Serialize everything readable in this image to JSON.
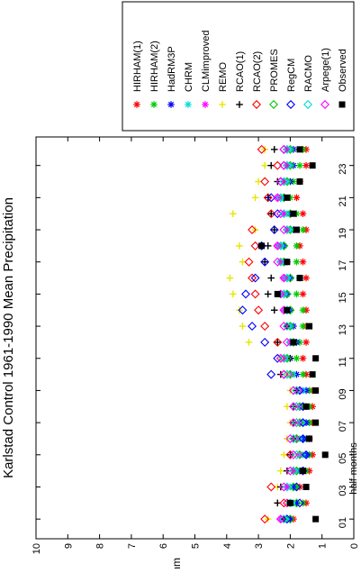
{
  "chart_data": {
    "type": "scatter",
    "title": "Karlstad Control 1961-1990 Mean Precipitation",
    "xlabel": "half-months",
    "ylabel": "mm",
    "ylim": [
      0,
      10
    ],
    "xlim": [
      0,
      24
    ],
    "x_ticks": [
      "01",
      "03",
      "05",
      "07",
      "09",
      "11",
      "13",
      "15",
      "17",
      "19",
      "21",
      "23"
    ],
    "y_ticks": [
      "0",
      "1",
      "2",
      "3",
      "4",
      "5",
      "6",
      "7",
      "8",
      "9",
      "10"
    ],
    "grid": false,
    "legend_position": "top-right",
    "x": [
      1,
      2,
      3,
      4,
      5,
      6,
      7,
      8,
      9,
      10,
      11,
      12,
      13,
      14,
      15,
      16,
      17,
      18,
      19,
      20,
      21,
      22,
      23,
      24
    ],
    "series": [
      {
        "name": "HIRHAM(1)",
        "color": "#ff0000",
        "marker": "star",
        "values": [
          1.9,
          1.5,
          1.7,
          1.4,
          1.3,
          1.4,
          1.3,
          1.3,
          1.3,
          1.5,
          1.6,
          1.5,
          1.5,
          1.5,
          1.6,
          1.5,
          1.6,
          1.7,
          1.5,
          1.6,
          1.8,
          1.7,
          1.5,
          1.5
        ]
      },
      {
        "name": "HIRHAM(2)",
        "color": "#00cc00",
        "marker": "star",
        "values": [
          2.2,
          1.6,
          1.8,
          1.5,
          1.4,
          1.5,
          1.4,
          1.4,
          1.4,
          1.6,
          1.8,
          1.7,
          1.6,
          1.6,
          1.8,
          1.7,
          1.8,
          1.8,
          1.6,
          1.8,
          2.0,
          1.9,
          1.7,
          1.6
        ]
      },
      {
        "name": "HadRM3P",
        "color": "#0000ff",
        "marker": "star",
        "values": [
          2.0,
          1.8,
          1.9,
          1.7,
          1.5,
          1.6,
          1.5,
          1.5,
          1.5,
          1.8,
          2.0,
          1.8,
          1.9,
          2.0,
          2.1,
          2.0,
          2.1,
          2.2,
          1.9,
          2.0,
          2.2,
          2.0,
          1.9,
          1.9
        ]
      },
      {
        "name": "CHRM",
        "color": "#00dddd",
        "marker": "star",
        "values": [
          2.1,
          1.9,
          2.0,
          1.8,
          1.6,
          1.7,
          1.6,
          1.6,
          1.6,
          1.9,
          2.1,
          1.9,
          2.0,
          2.1,
          2.2,
          2.1,
          2.2,
          2.3,
          2.0,
          2.1,
          2.3,
          2.1,
          2.0,
          2.0
        ]
      },
      {
        "name": "CLMimproved",
        "color": "#ff00ff",
        "marker": "star",
        "values": [
          2.3,
          2.0,
          2.1,
          1.9,
          1.7,
          1.8,
          1.7,
          1.7,
          1.7,
          2.0,
          2.2,
          2.0,
          2.1,
          2.2,
          2.3,
          2.2,
          2.3,
          2.4,
          2.1,
          2.2,
          2.4,
          2.2,
          2.1,
          2.1
        ]
      },
      {
        "name": "REMO",
        "color": "#e6e600",
        "marker": "plus",
        "values": [
          2.7,
          2.1,
          2.4,
          2.3,
          2.2,
          2.1,
          2.0,
          2.1,
          2.0,
          2.1,
          2.3,
          3.3,
          3.5,
          3.6,
          3.8,
          3.9,
          3.5,
          3.6,
          3.1,
          3.8,
          3.1,
          3.0,
          2.8,
          2.8
        ]
      },
      {
        "name": "RCAO(1)",
        "color": "#000000",
        "marker": "plus",
        "values": [
          2.2,
          2.4,
          2.3,
          2.1,
          2.0,
          1.9,
          1.9,
          1.9,
          1.8,
          2.3,
          2.0,
          2.4,
          2.1,
          2.5,
          2.7,
          2.6,
          2.8,
          2.7,
          2.5,
          2.6,
          2.7,
          2.4,
          2.6,
          2.5
        ]
      },
      {
        "name": "RCAO(2)",
        "color": "#ff0000",
        "marker": "diamond",
        "values": [
          2.8,
          2.2,
          2.6,
          1.9,
          2.0,
          1.8,
          1.8,
          1.8,
          1.8,
          2.2,
          2.2,
          2.4,
          2.8,
          3.0,
          3.1,
          3.2,
          3.3,
          3.1,
          3.2,
          2.6,
          2.7,
          2.8,
          2.4,
          2.9
        ]
      },
      {
        "name": "PROMES",
        "color": "#00cc00",
        "marker": "diamond",
        "values": [
          2.0,
          1.8,
          1.9,
          1.8,
          1.7,
          1.8,
          1.7,
          1.7,
          1.9,
          2.0,
          2.1,
          1.9,
          2.0,
          2.0,
          2.1,
          2.0,
          2.2,
          2.2,
          2.0,
          2.0,
          2.2,
          2.1,
          2.0,
          2.0
        ]
      },
      {
        "name": "RegCM",
        "color": "#0000ff",
        "marker": "diamond",
        "values": [
          2.1,
          1.7,
          1.8,
          1.6,
          1.5,
          1.6,
          1.6,
          1.6,
          1.7,
          2.6,
          2.4,
          2.8,
          3.2,
          3.5,
          3.4,
          3.1,
          2.8,
          2.9,
          2.5,
          2.4,
          2.6,
          2.3,
          2.2,
          2.2
        ]
      },
      {
        "name": "RACMO",
        "color": "#00dddd",
        "marker": "diamond",
        "values": [
          2.2,
          2.0,
          2.1,
          1.9,
          1.8,
          1.9,
          1.8,
          1.8,
          1.8,
          2.1,
          2.2,
          2.0,
          2.1,
          2.1,
          2.2,
          2.1,
          2.3,
          2.3,
          2.1,
          2.2,
          2.3,
          2.2,
          2.1,
          2.1
        ]
      },
      {
        "name": "Arpege(1)",
        "color": "#ff00ff",
        "marker": "diamond",
        "values": [
          2.3,
          2.1,
          2.2,
          2.0,
          1.9,
          2.0,
          1.9,
          1.9,
          1.9,
          2.2,
          2.3,
          2.1,
          2.2,
          2.2,
          2.3,
          2.2,
          2.4,
          2.4,
          2.2,
          2.3,
          2.4,
          2.3,
          2.2,
          2.2
        ]
      },
      {
        "name": "Observed",
        "color": "#000000",
        "marker": "square",
        "values": [
          1.2,
          2.0,
          1.5,
          1.6,
          0.9,
          1.4,
          1.2,
          1.5,
          1.2,
          1.3,
          1.2,
          1.9,
          1.4,
          2.1,
          2.4,
          1.7,
          2.1,
          2.9,
          1.8,
          1.9,
          2.1,
          1.7,
          1.3,
          1.7
        ]
      }
    ]
  }
}
